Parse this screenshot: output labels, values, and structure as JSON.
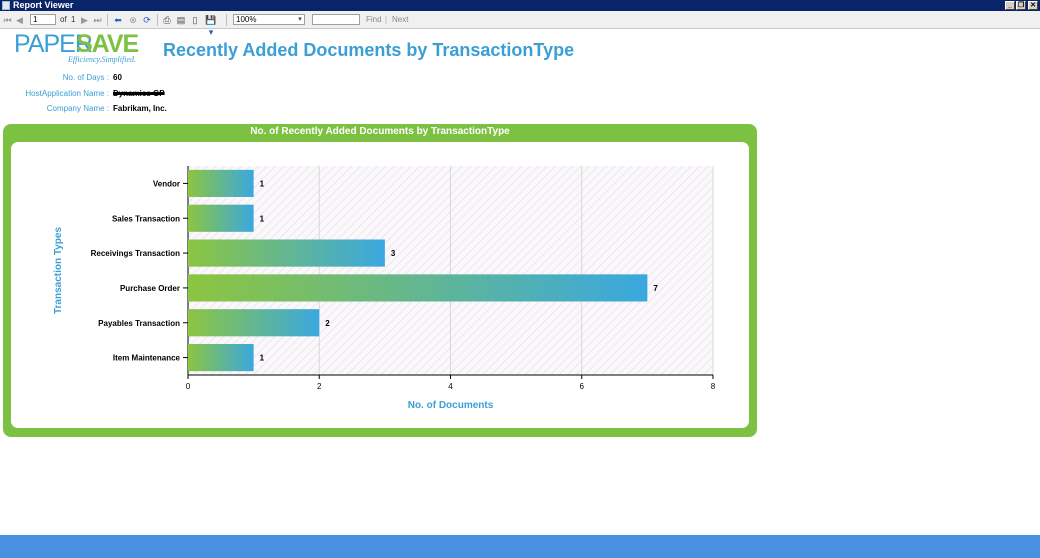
{
  "window": {
    "title": "Report Viewer",
    "controls": {
      "minimize": "_",
      "restore": "❐",
      "close": "✕"
    }
  },
  "toolbar": {
    "page_current": "1",
    "of_label": "of",
    "page_total": "1",
    "zoom": "100%",
    "find_placeholder": "",
    "find_label": "Find",
    "separator": "|",
    "next_label": "Next"
  },
  "logo": {
    "paper": "PAPER",
    "save": "SAVE",
    "tagline": "Efficiency.Simplified."
  },
  "report": {
    "title": "Recently Added Documents by TransactionType"
  },
  "parameters": [
    {
      "label": "No. of Days :",
      "value": "60"
    },
    {
      "label": "HostApplication Name :",
      "value": "Dynamics GP"
    },
    {
      "label": "Company Name :",
      "value": "Fabrikam, Inc."
    }
  ],
  "colors": {
    "accent_blue": "#3b9fd6",
    "accent_green": "#7dc142",
    "status_bar": "#4a90e2"
  },
  "chart_data": {
    "type": "bar",
    "orientation": "horizontal",
    "title": "No. of Recently Added Documents  by TransactionType",
    "xlabel": "No. of Documents",
    "ylabel": "Transaction Types",
    "categories": [
      "Vendor",
      "Sales Transaction",
      "Receivings Transaction",
      "Purchase Order",
      "Payables Transaction",
      "Item Maintenance"
    ],
    "values": [
      1,
      1,
      3,
      7,
      2,
      1
    ],
    "data_labels": [
      "1",
      "1",
      "3",
      "7",
      "2",
      "1"
    ],
    "xlim": [
      0,
      8
    ],
    "xticks": [
      0,
      2,
      4,
      6,
      8
    ],
    "grid": true,
    "legend": "none"
  }
}
